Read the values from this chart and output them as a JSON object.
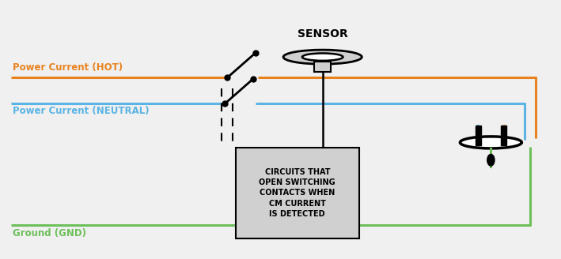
{
  "bg_color": "#f0f0f0",
  "hot_color": "#e8821e",
  "neutral_color": "#5ab4e5",
  "ground_color": "#6dbf5a",
  "wire_lw": 2.2,
  "title": "SENSOR",
  "box_text": "CIRCUITS THAT\nOPEN SWITCHING\nCONTACTS WHEN\nCM CURRENT\nIS DETECTED",
  "label_hot": "Power Current (HOT)",
  "label_neutral": "Power Current (NEUTRAL)",
  "label_ground": "Ground (GND)",
  "label_hot_color": "#e8821e",
  "label_neutral_color": "#5ab4e5",
  "label_ground_color": "#6dbf5a",
  "figw": 7.09,
  "figh": 3.28,
  "dpi": 100
}
